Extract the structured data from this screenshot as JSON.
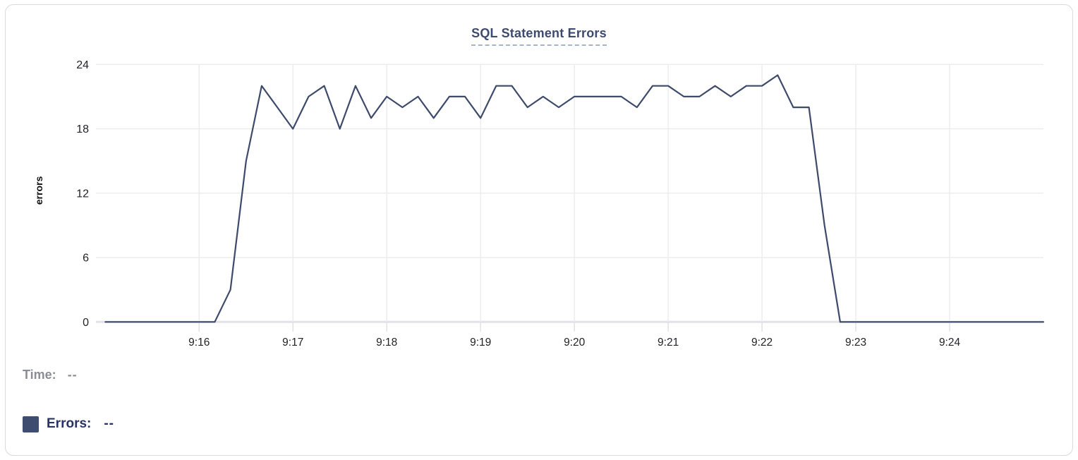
{
  "chart": {
    "title": "SQL Statement Errors",
    "y_axis_label": "errors",
    "tooltip": {
      "time_label": "Time:",
      "time_value": "--",
      "errors_label": "Errors:",
      "errors_value": "--"
    }
  },
  "colors": {
    "line": "#3d4a6c",
    "title": "#3d4b70",
    "title_underline": "#a9b2c8",
    "swatch": "#3e4d6f",
    "legend_muted": "#8a8d94",
    "legend_accent": "#2a3364",
    "tick_text": "#222326",
    "axis_title_text": "#111111",
    "gridline": "#ececef",
    "zero_line": "#e2e2e7",
    "axis_tick": "#e0e0e5",
    "card_border": "#d9dade"
  },
  "chart_data": {
    "type": "line",
    "title": "SQL Statement Errors",
    "xlabel": "",
    "ylabel": "errors",
    "ylim": [
      0,
      24
    ],
    "y_ticks": [
      0,
      6,
      12,
      18,
      24
    ],
    "x_tick_labels": [
      "9:16",
      "9:17",
      "9:18",
      "9:19",
      "9:20",
      "9:21",
      "9:22",
      "9:23",
      "9:24"
    ],
    "x_range": [
      "9:14:54",
      "9:25:00"
    ],
    "grid": true,
    "legend_position": "bottom-left",
    "series": [
      {
        "name": "Errors",
        "x": [
          "9:15:00",
          "9:15:10",
          "9:15:20",
          "9:15:30",
          "9:15:40",
          "9:15:50",
          "9:16:00",
          "9:16:10",
          "9:16:20",
          "9:16:30",
          "9:16:40",
          "9:16:50",
          "9:17:00",
          "9:17:10",
          "9:17:20",
          "9:17:30",
          "9:17:40",
          "9:17:50",
          "9:18:00",
          "9:18:10",
          "9:18:20",
          "9:18:30",
          "9:18:40",
          "9:18:50",
          "9:19:00",
          "9:19:10",
          "9:19:20",
          "9:19:30",
          "9:19:40",
          "9:19:50",
          "9:20:00",
          "9:20:10",
          "9:20:20",
          "9:20:30",
          "9:20:40",
          "9:20:50",
          "9:21:00",
          "9:21:10",
          "9:21:20",
          "9:21:30",
          "9:21:40",
          "9:21:50",
          "9:22:00",
          "9:22:10",
          "9:22:20",
          "9:22:30",
          "9:22:40",
          "9:22:50",
          "9:23:00",
          "9:23:10",
          "9:23:20",
          "9:23:30",
          "9:23:40",
          "9:23:50",
          "9:24:00",
          "9:24:10",
          "9:24:20",
          "9:24:30",
          "9:24:40",
          "9:24:50",
          "9:25:00"
        ],
        "values": [
          0,
          0,
          0,
          0,
          0,
          0,
          0,
          0,
          3,
          15,
          22,
          20,
          18,
          21,
          22,
          18,
          22,
          19,
          21,
          20,
          21,
          19,
          21,
          21,
          19,
          22,
          22,
          20,
          21,
          20,
          21,
          21,
          21,
          21,
          20,
          22,
          22,
          21,
          21,
          22,
          21,
          22,
          22,
          23,
          20,
          20,
          9,
          0,
          0,
          0,
          0,
          0,
          0,
          0,
          0,
          0,
          0,
          0,
          0,
          0,
          0
        ]
      }
    ]
  }
}
